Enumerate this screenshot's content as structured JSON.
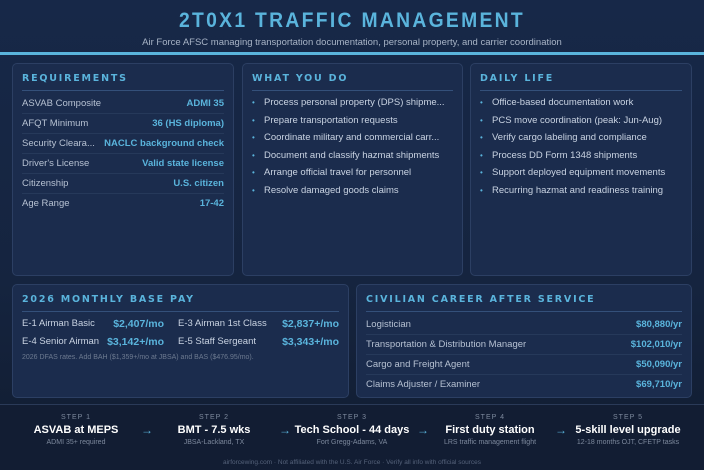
{
  "header": {
    "title": "2T0X1 TRAFFIC MANAGEMENT",
    "subtitle": "Air Force AFSC managing transportation documentation, personal property, and carrier coordination"
  },
  "colors": {
    "accent": "#5ab4dc",
    "background": "#15243f",
    "card": "#1b2c4d"
  },
  "requirements": {
    "title": "REQUIREMENTS",
    "rows": [
      {
        "k": "ASVAB Composite",
        "v": "ADMI 35"
      },
      {
        "k": "AFQT Minimum",
        "v": "36 (HS diploma)"
      },
      {
        "k": "Security Cleara...",
        "v": "NACLC background check"
      },
      {
        "k": "Driver's License",
        "v": "Valid state license"
      },
      {
        "k": "Citizenship",
        "v": "U.S. citizen"
      },
      {
        "k": "Age Range",
        "v": "17-42"
      }
    ]
  },
  "what_you_do": {
    "title": "WHAT YOU DO",
    "items": [
      "Process personal property (DPS) shipme...",
      "Prepare transportation requests",
      "Coordinate military and commercial carr...",
      "Document and classify hazmat shipments",
      "Arrange official travel for personnel",
      "Resolve damaged goods claims"
    ]
  },
  "daily_life": {
    "title": "DAILY LIFE",
    "items": [
      "Office-based documentation work",
      "PCS move coordination (peak: Jun-Aug)",
      "Verify cargo labeling and compliance",
      "Process DD Form 1348 shipments",
      "Support deployed equipment movements",
      "Recurring hazmat and readiness training"
    ]
  },
  "pay": {
    "title": "2026 MONTHLY BASE PAY",
    "rows": [
      {
        "k": "E-1 Airman Basic",
        "v": "$2,407/mo"
      },
      {
        "k": "E-3 Airman 1st Class",
        "v": "$2,837+/mo"
      },
      {
        "k": "E-4 Senior Airman",
        "v": "$3,142+/mo"
      },
      {
        "k": "E-5 Staff Sergeant",
        "v": "$3,343+/mo"
      }
    ],
    "note": "2026 DFAS rates. Add BAH ($1,359+/mo at JBSA) and BAS ($476.95/mo)."
  },
  "civilian": {
    "title": "CIVILIAN CAREER AFTER SERVICE",
    "rows": [
      {
        "k": "Logistician",
        "v": "$80,880/yr"
      },
      {
        "k": "Transportation & Distribution Manager",
        "v": "$102,010/yr"
      },
      {
        "k": "Cargo and Freight Agent",
        "v": "$50,090/yr"
      },
      {
        "k": "Claims Adjuster / Examiner",
        "v": "$69,710/yr"
      }
    ]
  },
  "steps": [
    {
      "label": "STEP 1",
      "title": "ASVAB at MEPS",
      "desc": "ADMI 35+ required"
    },
    {
      "label": "STEP 2",
      "title": "BMT - 7.5 wks",
      "desc": "JBSA-Lackland, TX"
    },
    {
      "label": "STEP 3",
      "title": "Tech School - 44 days",
      "desc": "Fort Gregg-Adams, VA"
    },
    {
      "label": "STEP 4",
      "title": "First duty station",
      "desc": "LRS traffic management flight"
    },
    {
      "label": "STEP 5",
      "title": "5-skill level upgrade",
      "desc": "12-18 months OJT, CFETP tasks"
    }
  ],
  "arrow": "→",
  "footer": "airforcewing.com · Not affiliated with the U.S. Air Force · Verify all info with official sources"
}
